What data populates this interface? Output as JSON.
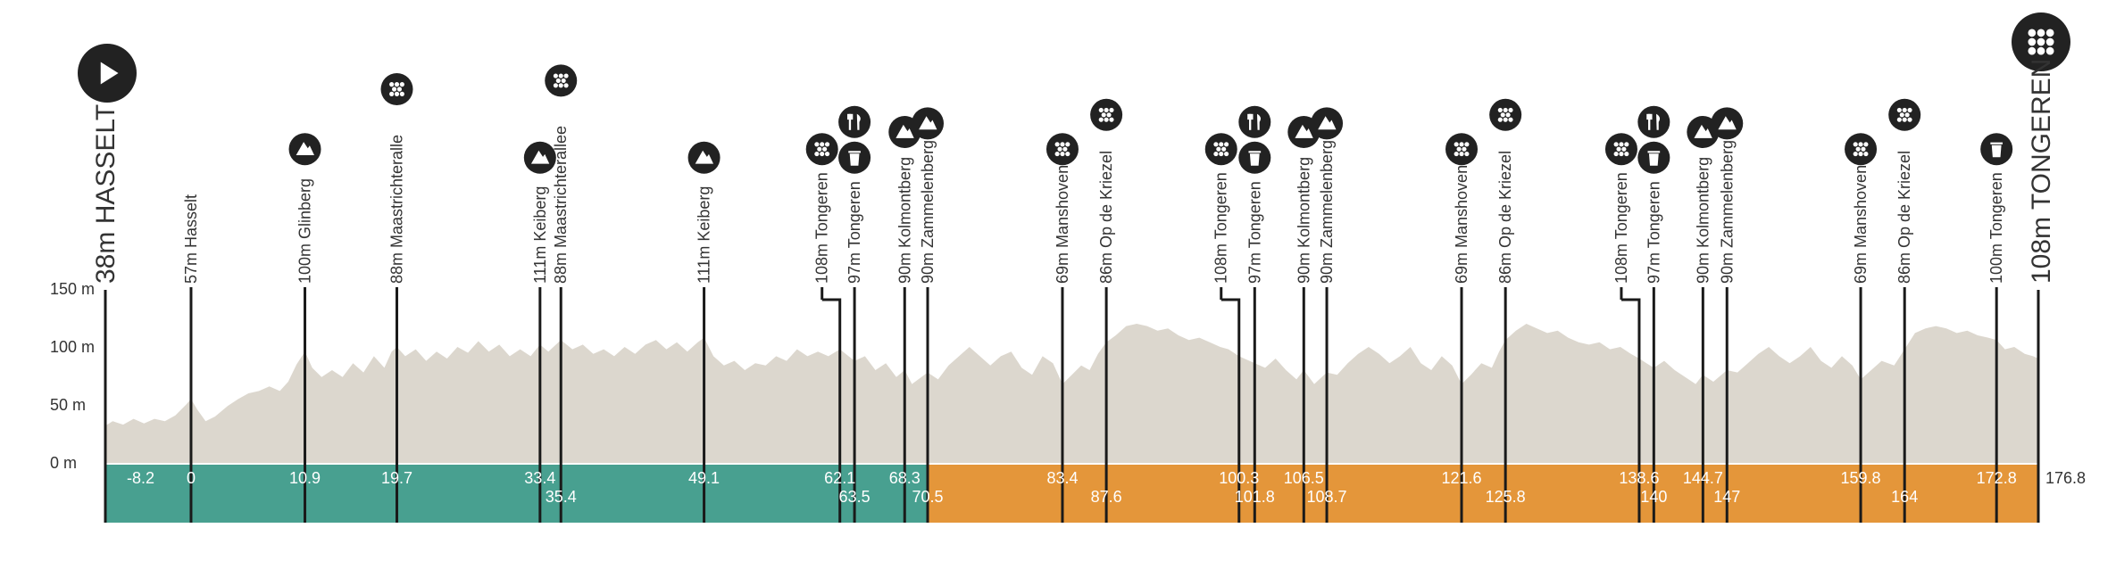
{
  "chart_data": {
    "type": "area",
    "xlim": [
      -8.2,
      176.8
    ],
    "ylim": [
      0,
      150
    ],
    "yticks": [
      {
        "value": 0,
        "label": "0 m"
      },
      {
        "value": 50,
        "label": "50 m"
      },
      {
        "value": 100,
        "label": "100 m"
      },
      {
        "value": 150,
        "label": "150 m"
      }
    ],
    "grid": true,
    "start_label": "38m HASSELT",
    "finish_label": "108m TONGEREN",
    "finish_km": "176.8",
    "elevation_profile": [
      [
        -8.2,
        32
      ],
      [
        -7.5,
        36
      ],
      [
        -6.5,
        33
      ],
      [
        -5.5,
        38
      ],
      [
        -4.5,
        34
      ],
      [
        -3.5,
        38
      ],
      [
        -2.5,
        36
      ],
      [
        -1.5,
        41
      ],
      [
        -0.5,
        50
      ],
      [
        0,
        55
      ],
      [
        0.6,
        46
      ],
      [
        1.4,
        36
      ],
      [
        2.3,
        40
      ],
      [
        3.5,
        49
      ],
      [
        4.5,
        55
      ],
      [
        5.5,
        60
      ],
      [
        6.5,
        62
      ],
      [
        7.5,
        66
      ],
      [
        8.5,
        62
      ],
      [
        9.3,
        70
      ],
      [
        10.1,
        85
      ],
      [
        10.9,
        96
      ],
      [
        11.6,
        82
      ],
      [
        12.5,
        74
      ],
      [
        13.5,
        80
      ],
      [
        14.5,
        74
      ],
      [
        15.5,
        86
      ],
      [
        16.5,
        78
      ],
      [
        17.5,
        92
      ],
      [
        18.5,
        82
      ],
      [
        19.2,
        96
      ],
      [
        19.7,
        100
      ],
      [
        20.5,
        92
      ],
      [
        21.5,
        98
      ],
      [
        22.5,
        88
      ],
      [
        23.5,
        96
      ],
      [
        24.5,
        90
      ],
      [
        25.5,
        100
      ],
      [
        26.5,
        95
      ],
      [
        27.5,
        105
      ],
      [
        28.5,
        96
      ],
      [
        29.5,
        102
      ],
      [
        30.5,
        92
      ],
      [
        31.5,
        98
      ],
      [
        32.5,
        92
      ],
      [
        33.4,
        102
      ],
      [
        34.2,
        96
      ],
      [
        35.4,
        106
      ],
      [
        36.5,
        98
      ],
      [
        37.5,
        102
      ],
      [
        38.5,
        94
      ],
      [
        39.5,
        98
      ],
      [
        40.5,
        92
      ],
      [
        41.5,
        100
      ],
      [
        42.5,
        94
      ],
      [
        43.5,
        102
      ],
      [
        44.5,
        106
      ],
      [
        45.5,
        98
      ],
      [
        46.5,
        104
      ],
      [
        47.5,
        96
      ],
      [
        48.5,
        104
      ],
      [
        49.1,
        108
      ],
      [
        50,
        92
      ],
      [
        51,
        84
      ],
      [
        52,
        88
      ],
      [
        53,
        80
      ],
      [
        54,
        86
      ],
      [
        55,
        84
      ],
      [
        56,
        92
      ],
      [
        57,
        88
      ],
      [
        58,
        98
      ],
      [
        59,
        92
      ],
      [
        60,
        96
      ],
      [
        61,
        92
      ],
      [
        62.1,
        98
      ],
      [
        63.5,
        88
      ],
      [
        64.5,
        92
      ],
      [
        65.5,
        80
      ],
      [
        66.5,
        86
      ],
      [
        67.5,
        74
      ],
      [
        68.3,
        80
      ],
      [
        69,
        68
      ],
      [
        70.5,
        78
      ],
      [
        71.5,
        72
      ],
      [
        72.5,
        84
      ],
      [
        73.5,
        92
      ],
      [
        74.5,
        100
      ],
      [
        75.5,
        92
      ],
      [
        76.5,
        84
      ],
      [
        77.5,
        92
      ],
      [
        78.5,
        96
      ],
      [
        79.5,
        82
      ],
      [
        80.5,
        76
      ],
      [
        81.5,
        92
      ],
      [
        82.5,
        86
      ],
      [
        83.4,
        68
      ],
      [
        84.3,
        76
      ],
      [
        85.2,
        84
      ],
      [
        86,
        80
      ],
      [
        86.8,
        94
      ],
      [
        87.6,
        104
      ],
      [
        88.5,
        110
      ],
      [
        89.5,
        118
      ],
      [
        90.5,
        120
      ],
      [
        91.5,
        118
      ],
      [
        92.5,
        114
      ],
      [
        93.5,
        116
      ],
      [
        94.5,
        110
      ],
      [
        95.5,
        106
      ],
      [
        96.5,
        108
      ],
      [
        97.5,
        104
      ],
      [
        98.5,
        100
      ],
      [
        99.3,
        98
      ],
      [
        100.3,
        92
      ],
      [
        101.8,
        86
      ],
      [
        102.8,
        82
      ],
      [
        103.8,
        90
      ],
      [
        104.8,
        80
      ],
      [
        105.8,
        72
      ],
      [
        106.5,
        80
      ],
      [
        107.5,
        68
      ],
      [
        108.7,
        78
      ],
      [
        109.7,
        76
      ],
      [
        110.7,
        86
      ],
      [
        111.7,
        94
      ],
      [
        112.7,
        100
      ],
      [
        113.7,
        94
      ],
      [
        114.7,
        86
      ],
      [
        115.7,
        92
      ],
      [
        116.7,
        100
      ],
      [
        117.7,
        86
      ],
      [
        118.7,
        80
      ],
      [
        119.7,
        92
      ],
      [
        120.7,
        84
      ],
      [
        121.6,
        68
      ],
      [
        122.5,
        76
      ],
      [
        123.5,
        86
      ],
      [
        124.5,
        82
      ],
      [
        125.2,
        96
      ],
      [
        125.8,
        106
      ],
      [
        126.8,
        114
      ],
      [
        127.8,
        120
      ],
      [
        128.8,
        116
      ],
      [
        129.8,
        112
      ],
      [
        130.8,
        114
      ],
      [
        131.8,
        108
      ],
      [
        132.8,
        104
      ],
      [
        133.8,
        102
      ],
      [
        134.8,
        104
      ],
      [
        135.8,
        98
      ],
      [
        136.8,
        100
      ],
      [
        137.8,
        94
      ],
      [
        138.6,
        90
      ],
      [
        139.3,
        86
      ],
      [
        140,
        82
      ],
      [
        141,
        88
      ],
      [
        142,
        80
      ],
      [
        143,
        74
      ],
      [
        144,
        68
      ],
      [
        144.7,
        76
      ],
      [
        145.7,
        70
      ],
      [
        147,
        80
      ],
      [
        148,
        78
      ],
      [
        149,
        86
      ],
      [
        150,
        94
      ],
      [
        151,
        100
      ],
      [
        152,
        92
      ],
      [
        153,
        86
      ],
      [
        154,
        92
      ],
      [
        155,
        100
      ],
      [
        156,
        88
      ],
      [
        157,
        82
      ],
      [
        158,
        92
      ],
      [
        159,
        84
      ],
      [
        159.8,
        72
      ],
      [
        160.8,
        80
      ],
      [
        161.8,
        88
      ],
      [
        163,
        84
      ],
      [
        164,
        98
      ],
      [
        165,
        112
      ],
      [
        166,
        116
      ],
      [
        167,
        118
      ],
      [
        168,
        116
      ],
      [
        169,
        112
      ],
      [
        170,
        114
      ],
      [
        171,
        110
      ],
      [
        172,
        108
      ],
      [
        172.8,
        106
      ],
      [
        173.6,
        98
      ],
      [
        174.5,
        100
      ],
      [
        175.5,
        94
      ],
      [
        176.3,
        92
      ],
      [
        176.8,
        90
      ]
    ],
    "segments": [
      {
        "from": -8.2,
        "to": 70.5,
        "color": "#48a090"
      },
      {
        "from": 70.5,
        "to": 176.8,
        "color": "#e4963a"
      }
    ],
    "markers": [
      {
        "km": 0,
        "label": "57m Hasselt",
        "km_label": "0",
        "row": 0,
        "icons": []
      },
      {
        "km": 10.9,
        "label": "100m Glinberg",
        "km_label": "10.9",
        "row": 0,
        "icons": [
          "climb"
        ]
      },
      {
        "km": 19.7,
        "label": "88m Maastrichteralle",
        "km_label": "19.7",
        "row": 0,
        "icons": [
          "cobbles"
        ]
      },
      {
        "km": 33.4,
        "label": "111m Keiberg",
        "km_label": "33.4",
        "row": 0,
        "icons": [
          "climb"
        ]
      },
      {
        "km": 35.4,
        "label": "88m Maastrichterallee",
        "km_label": "35.4",
        "row": 1,
        "icons": [
          "cobbles"
        ]
      },
      {
        "km": 49.1,
        "label": "111m Keiberg",
        "km_label": "49.1",
        "row": 0,
        "icons": [
          "climb"
        ]
      },
      {
        "km": 62.1,
        "label": "108m Tongeren",
        "km_label": "62.1",
        "row": 0,
        "icons": [
          "cobbles"
        ],
        "jog": -2.0
      },
      {
        "km": 63.5,
        "label": "97m Tongeren",
        "km_label": "63.5",
        "row": 1,
        "icons": [
          "feed",
          "waste"
        ]
      },
      {
        "km": 68.3,
        "label": "90m Kolmontberg",
        "km_label": "68.3",
        "row": 0,
        "icons": [
          "climb"
        ]
      },
      {
        "km": 70.5,
        "label": "90m Zammelenberg",
        "km_label": "70.5",
        "row": 1,
        "icons": [
          "climb"
        ]
      },
      {
        "km": 83.4,
        "label": "69m Manshoven",
        "km_label": "83.4",
        "row": 0,
        "icons": [
          "cobbles"
        ]
      },
      {
        "km": 87.6,
        "label": "86m Op de Kriezel",
        "km_label": "87.6",
        "row": 1,
        "icons": [
          "cobbles"
        ]
      },
      {
        "km": 100.3,
        "label": "108m Tongeren",
        "km_label": "100.3",
        "row": 0,
        "icons": [
          "cobbles"
        ],
        "jog": -2.0
      },
      {
        "km": 101.8,
        "label": "97m Tongeren",
        "km_label": "101.8",
        "row": 1,
        "icons": [
          "feed",
          "waste"
        ]
      },
      {
        "km": 106.5,
        "label": "90m Kolmontberg",
        "km_label": "106.5",
        "row": 0,
        "icons": [
          "climb"
        ]
      },
      {
        "km": 108.7,
        "label": "90m Zammelenberg",
        "km_label": "108.7",
        "row": 1,
        "icons": [
          "climb"
        ]
      },
      {
        "km": 121.6,
        "label": "69m Manshoven",
        "km_label": "121.6",
        "row": 0,
        "icons": [
          "cobbles"
        ]
      },
      {
        "km": 125.8,
        "label": "86m Op de Kriezel",
        "km_label": "125.8",
        "row": 1,
        "icons": [
          "cobbles"
        ]
      },
      {
        "km": 138.6,
        "label": "108m Tongeren",
        "km_label": "138.6",
        "row": 0,
        "icons": [
          "cobbles"
        ],
        "jog": -2.0
      },
      {
        "km": 140,
        "label": "97m Tongeren",
        "km_label": "140",
        "row": 1,
        "icons": [
          "feed",
          "waste"
        ]
      },
      {
        "km": 144.7,
        "label": "90m Kolmontberg",
        "km_label": "144.7",
        "row": 0,
        "icons": [
          "climb"
        ]
      },
      {
        "km": 147,
        "label": "90m Zammelenberg",
        "km_label": "147",
        "row": 1,
        "icons": [
          "climb"
        ]
      },
      {
        "km": 159.8,
        "label": "69m Manshoven",
        "km_label": "159.8",
        "row": 0,
        "icons": [
          "cobbles"
        ]
      },
      {
        "km": 164,
        "label": "86m Op de Kriezel",
        "km_label": "164",
        "row": 1,
        "icons": [
          "cobbles"
        ]
      },
      {
        "km": 172.8,
        "label": "100m Tongeren",
        "km_label": "172.8",
        "row": 0,
        "icons": [
          "waste"
        ]
      }
    ],
    "start_km_label": "-8.2",
    "colors": {
      "profile": "#dcd7ce",
      "axis_text": "#333333",
      "icon": "#222222"
    }
  }
}
